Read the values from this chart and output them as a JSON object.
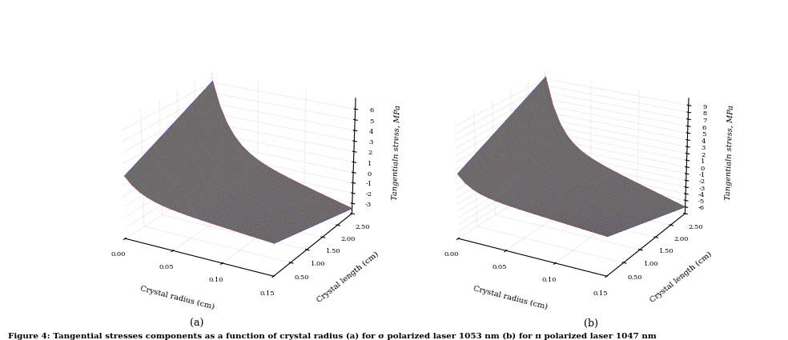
{
  "r_min": 0.001,
  "r_max": 0.15,
  "l_min": 0.0,
  "l_max": 2.5,
  "r_ticks": [
    0.0,
    0.05,
    0.1,
    0.15
  ],
  "l_ticks": [
    0.5,
    1.0,
    1.5,
    2.0,
    2.5
  ],
  "xlabel": "Crystal radius (cm)",
  "ylabel": "Crystal length (cm)",
  "zlabel_a": "Tangentialn stress, MPa",
  "zlabel_b": "Tangentialn stress, MPa",
  "zlim_a": [
    -4,
    7
  ],
  "zlim_b": [
    -7,
    10
  ],
  "zticks_a": [
    -3,
    -2,
    -1,
    0,
    1,
    2,
    3,
    4,
    5,
    6
  ],
  "zticks_b": [
    -6,
    -5,
    -4,
    -3,
    -2,
    -1,
    0,
    1,
    2,
    3,
    4,
    5,
    6,
    7,
    8,
    9
  ],
  "label_a": "(a)",
  "label_b": "(b)",
  "line_color_r": "#cc0000",
  "line_color_b": "#0000cc",
  "caption": "Figure 4: Tangential stresses components as a function of crystal radius (a) for σ polarized laser 1053 nm (b) for π polarized laser 1047 nm",
  "elev": 22,
  "azim": -60,
  "n_r": 20,
  "n_l": 20
}
